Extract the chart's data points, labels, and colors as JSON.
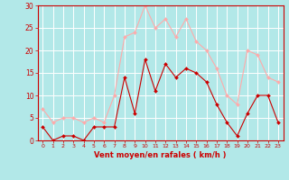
{
  "hours": [
    0,
    1,
    2,
    3,
    4,
    5,
    6,
    7,
    8,
    9,
    10,
    11,
    12,
    13,
    14,
    15,
    16,
    17,
    18,
    19,
    20,
    21,
    22,
    23
  ],
  "wind_avg": [
    3,
    0,
    1,
    1,
    0,
    3,
    3,
    3,
    14,
    6,
    18,
    11,
    17,
    14,
    16,
    15,
    13,
    8,
    4,
    1,
    6,
    10,
    10,
    4
  ],
  "wind_gust": [
    7,
    4,
    5,
    5,
    4,
    5,
    4,
    10,
    23,
    24,
    30,
    25,
    27,
    23,
    27,
    22,
    20,
    16,
    10,
    8,
    20,
    19,
    14,
    13
  ],
  "avg_color": "#cc0000",
  "gust_color": "#ffaaaa",
  "bg_color": "#b2e8e8",
  "grid_color": "#ffffff",
  "xlabel": "Vent moyen/en rafales ( km/h )",
  "xlabel_color": "#cc0000",
  "tick_color": "#cc0000",
  "ylim": [
    0,
    30
  ],
  "yticks": [
    0,
    5,
    10,
    15,
    20,
    25,
    30
  ],
  "spine_color": "#cc0000"
}
